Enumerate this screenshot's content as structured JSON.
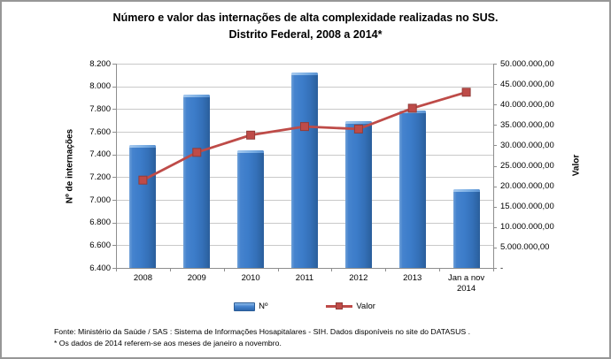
{
  "title": {
    "line1": "Número e valor das internações de alta complexidade realizadas no SUS.",
    "line2": "Distrito Federal, 2008 a 2014*"
  },
  "chart_data": {
    "type": "combo",
    "categories": [
      "2008",
      "2009",
      "2010",
      "2011",
      "2012",
      "2013",
      "Jan a nov 2014"
    ],
    "series": [
      {
        "name": "Nº",
        "chart": "bar",
        "axis": "left",
        "color": "#3E7CC9",
        "values": [
          7480,
          7930,
          7440,
          8120,
          7690,
          7790,
          7090
        ]
      },
      {
        "name": "Valor",
        "chart": "line",
        "axis": "right",
        "color": "#BE4B48",
        "values": [
          21500000,
          28300000,
          32500000,
          34600000,
          34000000,
          39100000,
          43000000
        ]
      }
    ],
    "left_axis": {
      "title": "Nº de internações",
      "min": 6400,
      "max": 8200,
      "step": 200,
      "tick_labels": [
        "8.200",
        "8.000",
        "7.800",
        "7.600",
        "7.400",
        "7.200",
        "7.000",
        "6.800",
        "6.600",
        "6.400"
      ]
    },
    "right_axis": {
      "title": "Valor",
      "min": 0,
      "max": 50000000,
      "step": 5000000,
      "tick_labels": [
        "50.000.000,00",
        "45.000.000,00",
        "40.000.000,00",
        "35.000.000,00",
        "30.000.000,00",
        "25.000.000,00",
        "20.000.000,00",
        "15.000.000,00",
        "10.000.000,00",
        "5.000.000,00",
        "-"
      ]
    },
    "legend": {
      "position": "bottom",
      "entries": [
        "Nº",
        "Valor"
      ]
    },
    "grid": true
  },
  "footer": {
    "line1": "Fonte:  Ministério da Saúde / SAS : Sistema de Informações Hosapitalares - SIH. Dados disponíveis no site do DATASUS .",
    "line2": "* Os dados de 2014 referem-se aos meses de janeiro a novembro."
  },
  "colors": {
    "bar_blue": "#3E7CC9",
    "line_red": "#BE4B48",
    "gridline": "#C9C9C9",
    "axis_line": "#8E8E8E",
    "chart_border": "#979797"
  }
}
